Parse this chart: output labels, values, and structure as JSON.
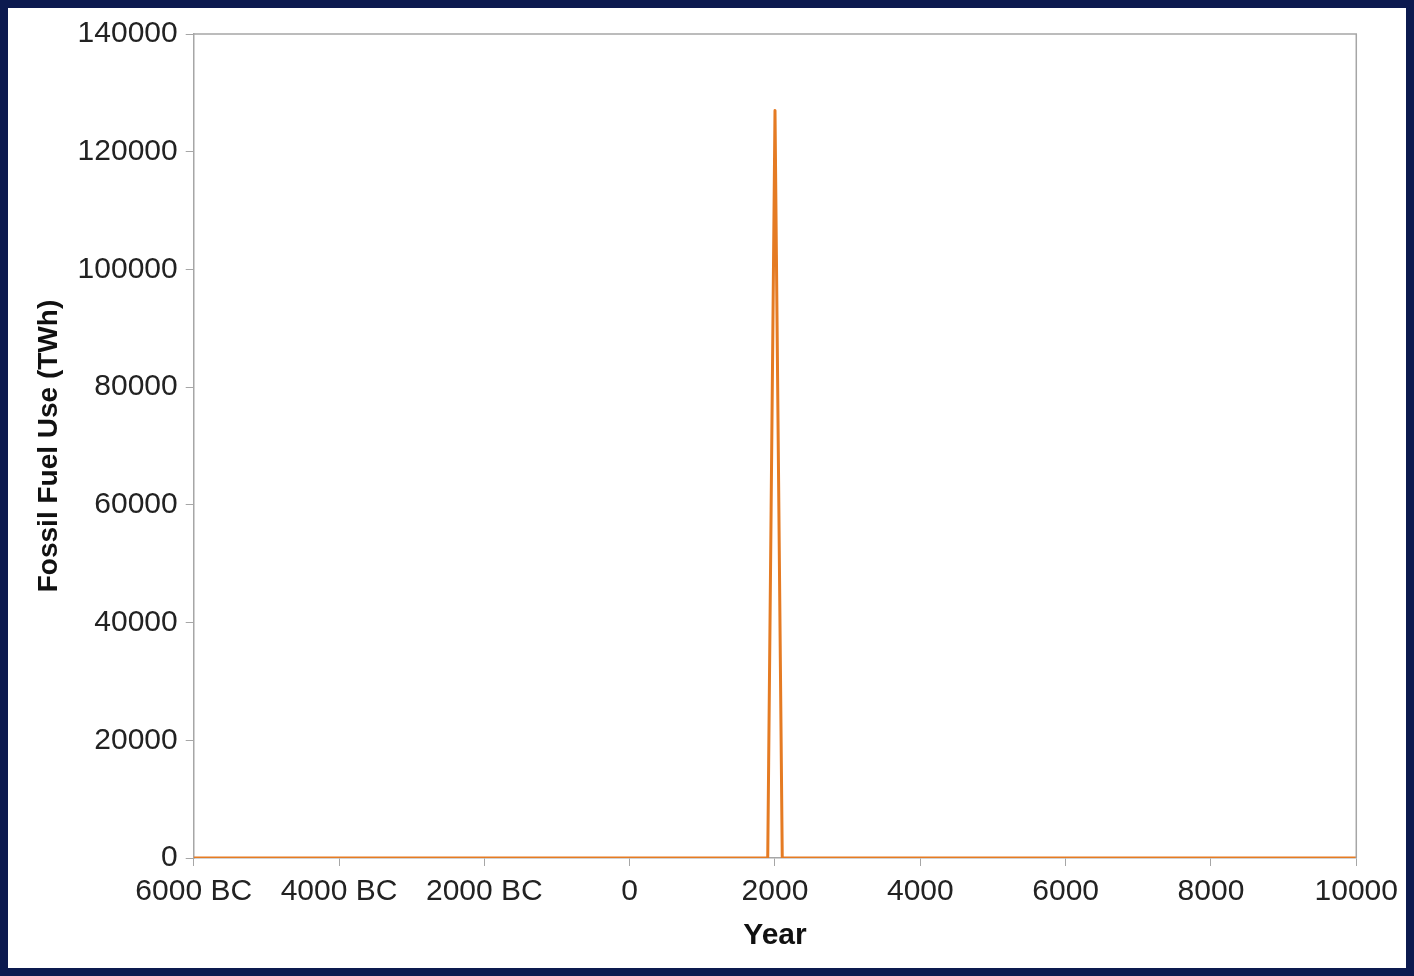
{
  "chart_data": {
    "type": "line",
    "xlabel": "Year",
    "ylabel": "Fossil Fuel Use (TWh)",
    "series": [
      {
        "color": "#e57b23",
        "x": [
          -6000,
          1900,
          2000,
          2100,
          10000
        ],
        "values": [
          0,
          0,
          127000,
          0,
          0
        ]
      }
    ],
    "xlim": [
      -6000,
      10000
    ],
    "xticks": [
      {
        "value": -6000,
        "label": "6000 BC"
      },
      {
        "value": -4000,
        "label": "4000 BC"
      },
      {
        "value": -2000,
        "label": "2000 BC"
      },
      0,
      2000,
      4000,
      6000,
      8000,
      10000
    ],
    "ylim": [
      0,
      140000
    ],
    "yticks": [
      0,
      20000,
      40000,
      60000,
      80000,
      100000,
      120000,
      140000
    ],
    "grid": false,
    "legend": false,
    "marker": "none",
    "line_style": "solid"
  }
}
